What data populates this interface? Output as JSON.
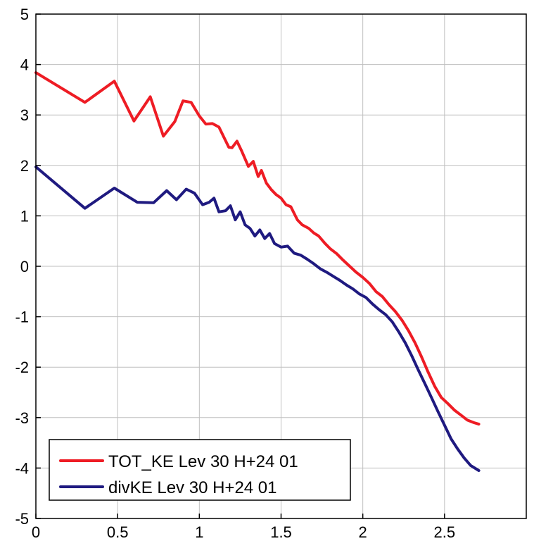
{
  "chart_data": {
    "type": "line",
    "title": "",
    "xlabel": "",
    "ylabel": "",
    "xlim": [
      0,
      3
    ],
    "ylim": [
      -5,
      5
    ],
    "grid": true,
    "legend_position": "bottom-left",
    "x_ticks": [
      0,
      0.5,
      1,
      1.5,
      2,
      2.5
    ],
    "x_tick_labels": [
      "0",
      "0.5",
      "1",
      "1.5",
      "2",
      "2.5"
    ],
    "y_ticks": [
      5,
      4,
      3,
      2,
      1,
      0,
      -1,
      -2,
      -3,
      -4,
      -5
    ],
    "y_tick_labels": [
      "5",
      "4",
      "3",
      "2",
      "1",
      "0",
      "-1",
      "-2",
      "-3",
      "-4",
      "-5"
    ],
    "series": [
      {
        "name": "TOT_KE Lev 30 H+24 01",
        "color": "#ee1c24",
        "x": [
          0,
          0.3,
          0.48,
          0.6,
          0.7,
          0.78,
          0.85,
          0.9,
          0.95,
          1.0,
          1.04,
          1.08,
          1.12,
          1.15,
          1.18,
          1.2,
          1.23,
          1.26,
          1.3,
          1.33,
          1.36,
          1.38,
          1.41,
          1.44,
          1.47,
          1.5,
          1.53,
          1.56,
          1.6,
          1.63,
          1.67,
          1.7,
          1.73,
          1.77,
          1.8,
          1.84,
          1.88,
          1.92,
          1.96,
          2.0,
          2.04,
          2.08,
          2.12,
          2.16,
          2.2,
          2.24,
          2.28,
          2.32,
          2.36,
          2.4,
          2.44,
          2.48,
          2.52,
          2.56,
          2.6,
          2.64,
          2.68,
          2.71
        ],
        "y": [
          3.84,
          3.25,
          3.67,
          2.88,
          3.36,
          2.58,
          2.87,
          3.28,
          3.25,
          2.98,
          2.82,
          2.83,
          2.76,
          2.56,
          2.36,
          2.35,
          2.48,
          2.28,
          1.98,
          2.08,
          1.78,
          1.9,
          1.65,
          1.52,
          1.42,
          1.35,
          1.22,
          1.18,
          0.92,
          0.82,
          0.75,
          0.66,
          0.6,
          0.45,
          0.35,
          0.25,
          0.12,
          0.0,
          -0.12,
          -0.22,
          -0.34,
          -0.5,
          -0.6,
          -0.76,
          -0.9,
          -1.07,
          -1.28,
          -1.52,
          -1.8,
          -2.1,
          -2.38,
          -2.6,
          -2.72,
          -2.85,
          -2.95,
          -3.05,
          -3.1,
          -3.13
        ]
      },
      {
        "name": "divKE Lev 30 H+24 01",
        "color": "#1f1a80",
        "x": [
          0,
          0.3,
          0.48,
          0.62,
          0.72,
          0.8,
          0.86,
          0.92,
          0.97,
          1.02,
          1.06,
          1.09,
          1.12,
          1.16,
          1.19,
          1.22,
          1.25,
          1.28,
          1.31,
          1.34,
          1.37,
          1.4,
          1.43,
          1.46,
          1.5,
          1.54,
          1.58,
          1.62,
          1.66,
          1.7,
          1.74,
          1.78,
          1.82,
          1.86,
          1.9,
          1.94,
          1.98,
          2.02,
          2.06,
          2.1,
          2.14,
          2.18,
          2.22,
          2.26,
          2.3,
          2.34,
          2.38,
          2.42,
          2.46,
          2.5,
          2.54,
          2.58,
          2.62,
          2.66,
          2.71
        ],
        "y": [
          1.97,
          1.15,
          1.55,
          1.27,
          1.26,
          1.5,
          1.32,
          1.53,
          1.45,
          1.22,
          1.27,
          1.35,
          1.08,
          1.1,
          1.2,
          0.92,
          1.08,
          0.82,
          0.75,
          0.6,
          0.72,
          0.55,
          0.65,
          0.45,
          0.38,
          0.4,
          0.26,
          0.22,
          0.14,
          0.05,
          -0.05,
          -0.12,
          -0.2,
          -0.28,
          -0.37,
          -0.45,
          -0.55,
          -0.62,
          -0.75,
          -0.86,
          -0.96,
          -1.1,
          -1.3,
          -1.52,
          -1.78,
          -2.06,
          -2.33,
          -2.6,
          -2.88,
          -3.15,
          -3.42,
          -3.62,
          -3.8,
          -3.95,
          -4.05
        ]
      }
    ]
  }
}
